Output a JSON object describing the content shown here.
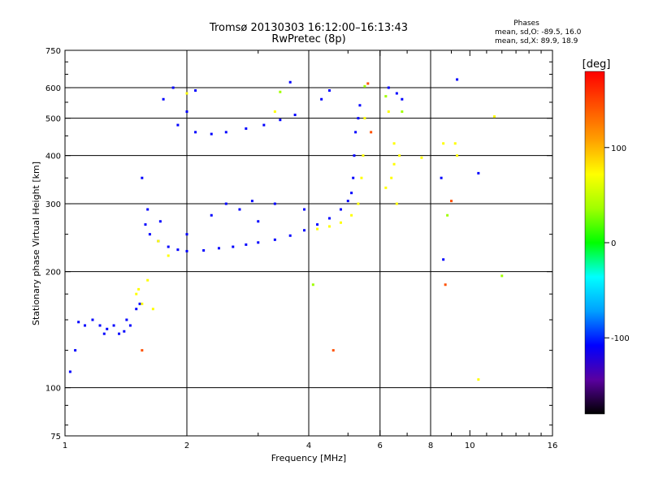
{
  "chart_data": {
    "type": "scatter",
    "title": "Tromsø 20130303 16:12:00–16:13:43",
    "subtitle": "RwPretec (8p)",
    "xlabel": "Frequency [MHz]",
    "ylabel": "Stationary phase Virtual Height [km]",
    "x_scale": "log",
    "y_scale": "log",
    "xlim": [
      1,
      16
    ],
    "ylim": [
      75,
      750
    ],
    "x_ticks": [
      "1",
      "2",
      "4",
      "6",
      "8",
      "10",
      "16"
    ],
    "x_tick_values": [
      1,
      2,
      4,
      6,
      8,
      10,
      16
    ],
    "y_ticks": [
      "75",
      "100",
      "200",
      "300",
      "400",
      "500",
      "600",
      "750"
    ],
    "y_tick_values": [
      75,
      100,
      200,
      300,
      400,
      500,
      600,
      750
    ],
    "grid": true,
    "grid_x": [
      2,
      4,
      6,
      8
    ],
    "grid_y": [
      100,
      200,
      300,
      400,
      500,
      600
    ],
    "phases_box": {
      "title": "Phases",
      "line1": "mean, sd,O: -89.5, 16.0",
      "line2": "mean, sd,X:  89.9, 18.9"
    },
    "colorbar": {
      "label": "[deg]",
      "range": [
        -180,
        180
      ],
      "ticks": [
        "100",
        "0",
        "-100"
      ],
      "tick_values": [
        100,
        0,
        -100
      ],
      "colors": [
        "#000000",
        "#5a00a0",
        "#0000ff",
        "#00a0ff",
        "#00ffff",
        "#00ff00",
        "#a0ff00",
        "#ffff00",
        "#ffa000",
        "#ff5000",
        "#ff0000"
      ]
    },
    "series": [
      {
        "phase_deg": -95,
        "points": [
          [
            1.03,
            110
          ],
          [
            1.06,
            125
          ],
          [
            1.08,
            148
          ],
          [
            1.12,
            145
          ],
          [
            1.17,
            150
          ],
          [
            1.22,
            145
          ],
          [
            1.27,
            142
          ],
          [
            1.32,
            145
          ],
          [
            1.36,
            138
          ],
          [
            1.4,
            140
          ],
          [
            1.45,
            145
          ],
          [
            1.5,
            160
          ],
          [
            1.53,
            165
          ],
          [
            1.55,
            350
          ],
          [
            1.58,
            265
          ],
          [
            1.62,
            250
          ],
          [
            1.7,
            240
          ],
          [
            1.8,
            232
          ],
          [
            1.9,
            228
          ],
          [
            2.0,
            226
          ],
          [
            2.2,
            227
          ],
          [
            2.4,
            230
          ],
          [
            2.6,
            232
          ],
          [
            2.8,
            235
          ],
          [
            3.0,
            238
          ],
          [
            3.3,
            242
          ],
          [
            3.6,
            248
          ],
          [
            3.9,
            256
          ],
          [
            4.2,
            265
          ],
          [
            4.5,
            275
          ],
          [
            4.8,
            290
          ],
          [
            5.0,
            305
          ],
          [
            5.1,
            320
          ],
          [
            5.15,
            350
          ],
          [
            5.18,
            400
          ],
          [
            5.22,
            460
          ],
          [
            5.3,
            500
          ],
          [
            5.35,
            540
          ],
          [
            2.1,
            460
          ],
          [
            2.3,
            455
          ],
          [
            2.5,
            460
          ],
          [
            2.8,
            470
          ],
          [
            3.1,
            480
          ],
          [
            3.4,
            495
          ],
          [
            3.7,
            510
          ],
          [
            1.9,
            480
          ],
          [
            2.0,
            520
          ],
          [
            1.75,
            560
          ],
          [
            1.85,
            600
          ],
          [
            2.1,
            590
          ],
          [
            3.6,
            620
          ],
          [
            4.3,
            560
          ],
          [
            4.5,
            590
          ],
          [
            6.3,
            600
          ],
          [
            6.6,
            580
          ],
          [
            6.8,
            560
          ],
          [
            2.5,
            300
          ],
          [
            2.9,
            305
          ],
          [
            3.3,
            300
          ],
          [
            3.9,
            290
          ],
          [
            3.0,
            270
          ],
          [
            2.0,
            250
          ],
          [
            1.72,
            270
          ],
          [
            1.6,
            290
          ],
          [
            9.3,
            630
          ],
          [
            8.5,
            350
          ],
          [
            8.6,
            215
          ],
          [
            10.5,
            360
          ],
          [
            2.7,
            290
          ],
          [
            2.3,
            280
          ],
          [
            1.42,
            150
          ],
          [
            1.25,
            138
          ]
        ]
      },
      {
        "phase_deg": 85,
        "points": [
          [
            4.2,
            258
          ],
          [
            4.5,
            262
          ],
          [
            4.8,
            268
          ],
          [
            5.1,
            280
          ],
          [
            5.3,
            300
          ],
          [
            5.4,
            350
          ],
          [
            5.45,
            400
          ],
          [
            5.5,
            500
          ],
          [
            6.2,
            330
          ],
          [
            6.4,
            350
          ],
          [
            6.5,
            380
          ],
          [
            6.6,
            300
          ],
          [
            6.5,
            430
          ],
          [
            6.3,
            520
          ],
          [
            1.5,
            175
          ],
          [
            1.52,
            180
          ],
          [
            1.55,
            165
          ],
          [
            1.6,
            190
          ],
          [
            1.65,
            160
          ],
          [
            1.7,
            240
          ],
          [
            1.8,
            220
          ],
          [
            2.0,
            580
          ],
          [
            3.3,
            520
          ],
          [
            6.7,
            400
          ],
          [
            7.6,
            395
          ],
          [
            8.6,
            430
          ],
          [
            9.2,
            430
          ],
          [
            9.3,
            400
          ],
          [
            11.5,
            505
          ],
          [
            10.5,
            105
          ]
        ]
      },
      {
        "phase_deg": 140,
        "points": [
          [
            5.6,
            615
          ],
          [
            4.6,
            125
          ],
          [
            8.7,
            185
          ],
          [
            9.0,
            305
          ],
          [
            5.7,
            460
          ],
          [
            1.55,
            125
          ]
        ]
      },
      {
        "phase_deg": 30,
        "points": [
          [
            3.4,
            585
          ],
          [
            6.2,
            570
          ],
          [
            6.8,
            520
          ],
          [
            4.1,
            185
          ],
          [
            8.8,
            280
          ],
          [
            12.0,
            195
          ],
          [
            5.5,
            605
          ]
        ]
      }
    ]
  }
}
